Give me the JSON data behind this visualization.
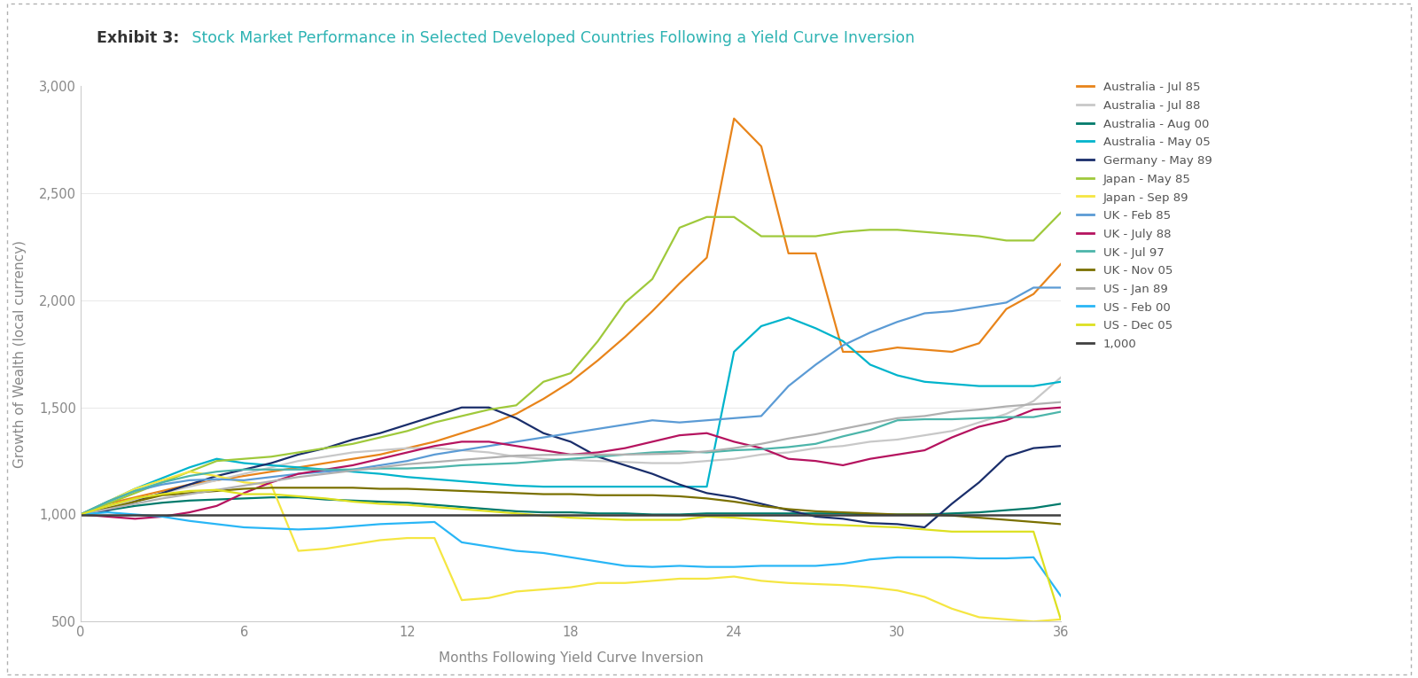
{
  "title_exhibit": "Exhibit 3:",
  "title_main": " Stock Market Performance in Selected Developed Countries Following a Yield Curve Inversion",
  "xlabel": "Months Following Yield Curve Inversion",
  "ylabel": "Growth of Wealth (local currency)",
  "xlim": [
    0,
    36
  ],
  "ylim": [
    500,
    3000
  ],
  "yticks": [
    500,
    1000,
    1500,
    2000,
    2500,
    3000
  ],
  "xticks": [
    0,
    6,
    12,
    18,
    24,
    30,
    36
  ],
  "background_color": "#ffffff",
  "title_exhibit_color": "#333333",
  "title_main_color": "#2db3b3",
  "series": [
    {
      "label": "Australia - Jul 85",
      "color": "#e8841a",
      "linewidth": 1.6,
      "data": [
        1000,
        1050,
        1080,
        1110,
        1140,
        1160,
        1180,
        1200,
        1220,
        1240,
        1260,
        1280,
        1310,
        1340,
        1380,
        1420,
        1470,
        1540,
        1620,
        1720,
        1830,
        1950,
        2080,
        2200,
        2850,
        2720,
        2220,
        2220,
        1760,
        1760,
        1780,
        1770,
        1760,
        1800,
        1960,
        2030,
        2170
      ]
    },
    {
      "label": "Australia - Jul 88",
      "color": "#c8c8c8",
      "linewidth": 1.6,
      "data": [
        1000,
        1040,
        1070,
        1100,
        1130,
        1160,
        1190,
        1220,
        1250,
        1270,
        1290,
        1300,
        1310,
        1310,
        1300,
        1290,
        1270,
        1260,
        1255,
        1250,
        1245,
        1240,
        1240,
        1250,
        1260,
        1280,
        1290,
        1310,
        1320,
        1340,
        1350,
        1370,
        1390,
        1430,
        1470,
        1530,
        1640
      ]
    },
    {
      "label": "Australia - Aug 00",
      "color": "#007a6b",
      "linewidth": 1.6,
      "data": [
        1000,
        1020,
        1040,
        1055,
        1065,
        1070,
        1075,
        1080,
        1080,
        1070,
        1065,
        1060,
        1055,
        1045,
        1035,
        1025,
        1015,
        1010,
        1010,
        1005,
        1005,
        1000,
        1000,
        1005,
        1005,
        1005,
        1005,
        1005,
        1005,
        1000,
        1000,
        1000,
        1005,
        1010,
        1020,
        1030,
        1050
      ]
    },
    {
      "label": "Australia - May 05",
      "color": "#00b4cc",
      "linewidth": 1.6,
      "data": [
        1000,
        1060,
        1120,
        1170,
        1220,
        1260,
        1240,
        1230,
        1220,
        1210,
        1200,
        1190,
        1175,
        1165,
        1155,
        1145,
        1135,
        1130,
        1130,
        1130,
        1130,
        1130,
        1130,
        1130,
        1760,
        1880,
        1920,
        1870,
        1810,
        1700,
        1650,
        1620,
        1610,
        1600,
        1600,
        1600,
        1620
      ]
    },
    {
      "label": "Germany - May 89",
      "color": "#1a2e6b",
      "linewidth": 1.6,
      "data": [
        1000,
        1020,
        1060,
        1100,
        1140,
        1180,
        1210,
        1240,
        1280,
        1310,
        1350,
        1380,
        1420,
        1460,
        1500,
        1500,
        1450,
        1380,
        1340,
        1270,
        1230,
        1190,
        1140,
        1100,
        1080,
        1050,
        1020,
        990,
        980,
        960,
        955,
        940,
        1050,
        1150,
        1270,
        1310,
        1320
      ]
    },
    {
      "label": "Japan - May 85",
      "color": "#9fc93b",
      "linewidth": 1.6,
      "data": [
        1000,
        1050,
        1100,
        1150,
        1200,
        1250,
        1260,
        1270,
        1290,
        1310,
        1330,
        1360,
        1390,
        1430,
        1460,
        1490,
        1510,
        1620,
        1660,
        1810,
        1990,
        2100,
        2340,
        2390,
        2390,
        2300,
        2300,
        2300,
        2320,
        2330,
        2330,
        2320,
        2310,
        2300,
        2280,
        2280,
        2410
      ]
    },
    {
      "label": "Japan - Sep 89",
      "color": "#f5e642",
      "linewidth": 1.6,
      "data": [
        1000,
        1060,
        1120,
        1160,
        1200,
        1180,
        1150,
        1140,
        830,
        840,
        860,
        880,
        890,
        890,
        600,
        610,
        640,
        650,
        660,
        680,
        680,
        690,
        700,
        700,
        710,
        690,
        680,
        675,
        670,
        660,
        645,
        615,
        560,
        520,
        510,
        500,
        510
      ]
    },
    {
      "label": "UK - Feb 85",
      "color": "#5b9bd5",
      "linewidth": 1.6,
      "data": [
        1000,
        1060,
        1110,
        1140,
        1160,
        1165,
        1160,
        1175,
        1190,
        1200,
        1210,
        1230,
        1250,
        1280,
        1300,
        1320,
        1340,
        1360,
        1380,
        1400,
        1420,
        1440,
        1430,
        1440,
        1450,
        1460,
        1600,
        1700,
        1790,
        1850,
        1900,
        1940,
        1950,
        1970,
        1990,
        2060,
        2060
      ]
    },
    {
      "label": "UK - July 88",
      "color": "#b5135f",
      "linewidth": 1.6,
      "data": [
        1000,
        990,
        980,
        990,
        1010,
        1040,
        1100,
        1150,
        1190,
        1210,
        1230,
        1260,
        1290,
        1320,
        1340,
        1340,
        1320,
        1300,
        1280,
        1290,
        1310,
        1340,
        1370,
        1380,
        1340,
        1310,
        1260,
        1250,
        1230,
        1260,
        1280,
        1300,
        1360,
        1410,
        1440,
        1490,
        1500
      ]
    },
    {
      "label": "UK - Jul 97",
      "color": "#4cb5aa",
      "linewidth": 1.6,
      "data": [
        1000,
        1060,
        1110,
        1150,
        1180,
        1200,
        1210,
        1210,
        1210,
        1210,
        1210,
        1215,
        1215,
        1220,
        1230,
        1235,
        1240,
        1250,
        1260,
        1270,
        1280,
        1290,
        1295,
        1290,
        1300,
        1305,
        1315,
        1330,
        1365,
        1395,
        1440,
        1445,
        1445,
        1450,
        1455,
        1455,
        1480
      ]
    },
    {
      "label": "UK - Nov 05",
      "color": "#7a7000",
      "linewidth": 1.6,
      "data": [
        1000,
        1030,
        1060,
        1090,
        1100,
        1110,
        1120,
        1125,
        1125,
        1125,
        1125,
        1120,
        1120,
        1115,
        1110,
        1105,
        1100,
        1095,
        1095,
        1090,
        1090,
        1090,
        1085,
        1075,
        1060,
        1040,
        1025,
        1015,
        1010,
        1005,
        1000,
        1000,
        995,
        985,
        975,
        965,
        955
      ]
    },
    {
      "label": "US - Jan 89",
      "color": "#b0b0b0",
      "linewidth": 1.6,
      "data": [
        1000,
        1025,
        1050,
        1075,
        1095,
        1115,
        1135,
        1155,
        1175,
        1190,
        1205,
        1220,
        1235,
        1245,
        1255,
        1265,
        1275,
        1278,
        1280,
        1280,
        1280,
        1282,
        1285,
        1295,
        1310,
        1330,
        1355,
        1375,
        1400,
        1425,
        1450,
        1460,
        1480,
        1490,
        1505,
        1515,
        1525
      ]
    },
    {
      "label": "US - Feb 00",
      "color": "#29b6f6",
      "linewidth": 1.6,
      "data": [
        1000,
        1010,
        1000,
        990,
        970,
        955,
        940,
        935,
        930,
        935,
        945,
        955,
        960,
        965,
        870,
        850,
        830,
        820,
        800,
        780,
        760,
        755,
        760,
        755,
        755,
        760,
        760,
        760,
        770,
        790,
        800,
        800,
        800,
        795,
        795,
        800,
        620
      ]
    },
    {
      "label": "US - Dec 05",
      "color": "#dde020",
      "linewidth": 1.6,
      "data": [
        1000,
        1040,
        1075,
        1095,
        1110,
        1115,
        1095,
        1095,
        1085,
        1075,
        1060,
        1050,
        1045,
        1035,
        1025,
        1015,
        1005,
        995,
        985,
        980,
        975,
        975,
        975,
        990,
        985,
        975,
        965,
        955,
        950,
        945,
        940,
        930,
        920,
        920,
        920,
        920,
        510
      ]
    },
    {
      "label": "1,000",
      "color": "#404040",
      "linewidth": 1.8,
      "data": [
        1000,
        1000,
        1000,
        1000,
        1000,
        1000,
        1000,
        1000,
        1000,
        1000,
        1000,
        1000,
        1000,
        1000,
        1000,
        1000,
        1000,
        1000,
        1000,
        1000,
        1000,
        1000,
        1000,
        1000,
        1000,
        1000,
        1000,
        1000,
        1000,
        1000,
        1000,
        1000,
        1000,
        1000,
        1000,
        1000,
        1000
      ]
    }
  ]
}
